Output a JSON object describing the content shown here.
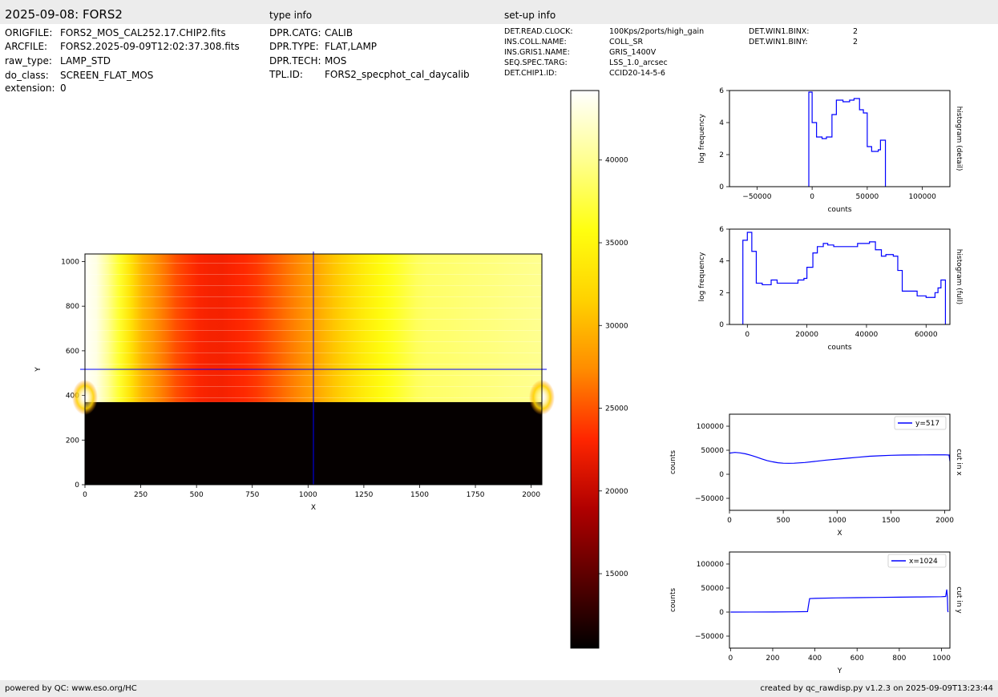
{
  "header": {
    "title": "2025-09-08: FORS2",
    "type_info_label": "type info",
    "setup_info_label": "set-up info"
  },
  "file_info": [
    {
      "key": "ORIGFILE:",
      "value": "FORS2_MOS_CAL252.17.CHIP2.fits"
    },
    {
      "key": "ARCFILE:",
      "value": "FORS2.2025-09-09T12:02:37.308.fits"
    },
    {
      "key": "raw_type:",
      "value": "LAMP_STD"
    },
    {
      "key": "do_class:",
      "value": "SCREEN_FLAT_MOS"
    },
    {
      "key": "extension:",
      "value": "0"
    }
  ],
  "type_info": [
    {
      "key": "DPR.CATG:",
      "value": "CALIB"
    },
    {
      "key": "DPR.TYPE:",
      "value": "FLAT,LAMP"
    },
    {
      "key": "DPR.TECH:",
      "value": "MOS"
    },
    {
      "key": "TPL.ID:",
      "value": "FORS2_specphot_cal_daycalib"
    }
  ],
  "setup_info": [
    {
      "key": "DET.READ.CLOCK:",
      "value": "100Kps/2ports/high_gain"
    },
    {
      "key": "INS.COLL.NAME:",
      "value": "COLL_SR"
    },
    {
      "key": "INS.GRIS1.NAME:",
      "value": "GRIS_1400V"
    },
    {
      "key": "SEQ.SPEC.TARG:",
      "value": "LSS_1.0_arcsec"
    },
    {
      "key": "DET.CHIP1.ID:",
      "value": "CCID20-14-5-6"
    }
  ],
  "setup_info2": [
    {
      "key": "DET.WIN1.BINX:",
      "value": "2"
    },
    {
      "key": "DET.WIN1.BINY:",
      "value": "2"
    }
  ],
  "footer": {
    "left": "powered by QC: www.eso.org/HC",
    "right": "created by qc_rawdisp.py v1.2.3 on 2025-09-09T13:23:44"
  },
  "colors": {
    "line": "#0000ff",
    "colormap": [
      "#000000",
      "#5a0000",
      "#b00000",
      "#ff2600",
      "#ff8c00",
      "#ffd200",
      "#ffff10",
      "#ffff90",
      "#ffffff"
    ]
  },
  "chart_data": [
    {
      "type": "heatmap",
      "xlabel": "X",
      "ylabel": "Y",
      "xlim": [
        0,
        2048
      ],
      "ylim": [
        0,
        1034
      ],
      "xticks": [
        0,
        250,
        500,
        750,
        1000,
        1250,
        1500,
        1750,
        2000
      ],
      "yticks": [
        0,
        200,
        400,
        600,
        800,
        1000
      ],
      "cursor_x": 1024,
      "cursor_y": 517,
      "illuminated_from_y": 370,
      "column_profile": {
        "x": [
          0,
          60,
          150,
          250,
          400,
          500,
          600,
          750,
          1000,
          1250,
          1500,
          2048
        ],
        "counts": [
          44000,
          43000,
          37000,
          30000,
          25000,
          23000,
          22500,
          23500,
          28000,
          34000,
          38500,
          40000
        ]
      }
    },
    {
      "type": "colorbar",
      "range": [
        10500,
        44200
      ],
      "ticks": [
        15000,
        20000,
        25000,
        30000,
        35000,
        40000
      ]
    },
    {
      "type": "line",
      "name": "histogram (detail)",
      "xlabel": "counts",
      "ylabel": "log frequency",
      "xlim": [
        -75000,
        125000
      ],
      "ylim": [
        0,
        6
      ],
      "xticks": [
        -50000,
        0,
        50000,
        100000
      ],
      "yticks": [
        0,
        2,
        4,
        6
      ],
      "steps": [
        [
          -3000,
          5.9
        ],
        [
          0,
          4.0
        ],
        [
          4000,
          3.1
        ],
        [
          9000,
          3.0
        ],
        [
          13000,
          3.1
        ],
        [
          18000,
          4.5
        ],
        [
          22000,
          5.4
        ],
        [
          28000,
          5.3
        ],
        [
          34000,
          5.4
        ],
        [
          38000,
          5.5
        ],
        [
          43000,
          4.8
        ],
        [
          46500,
          4.6
        ],
        [
          50000,
          2.5
        ],
        [
          54000,
          2.2
        ],
        [
          60000,
          2.3
        ],
        [
          62000,
          2.9
        ],
        [
          66500,
          0
        ]
      ]
    },
    {
      "type": "line",
      "name": "histogram (full)",
      "xlabel": "counts",
      "ylabel": "log frequency",
      "xlim": [
        -6000,
        68000
      ],
      "ylim": [
        0,
        6
      ],
      "xticks": [
        0,
        20000,
        40000,
        60000
      ],
      "yticks": [
        0,
        2,
        4,
        6
      ],
      "steps": [
        [
          -1500,
          5.3
        ],
        [
          0,
          5.8
        ],
        [
          1500,
          4.6
        ],
        [
          3000,
          2.6
        ],
        [
          5000,
          2.5
        ],
        [
          8000,
          2.8
        ],
        [
          10000,
          2.6
        ],
        [
          12000,
          2.6
        ],
        [
          17000,
          2.8
        ],
        [
          19000,
          2.9
        ],
        [
          20000,
          3.6
        ],
        [
          22000,
          4.5
        ],
        [
          23500,
          4.9
        ],
        [
          25500,
          5.1
        ],
        [
          27000,
          5.0
        ],
        [
          29000,
          4.9
        ],
        [
          37000,
          5.1
        ],
        [
          41000,
          5.2
        ],
        [
          43000,
          4.7
        ],
        [
          45000,
          4.3
        ],
        [
          46500,
          4.4
        ],
        [
          49000,
          4.3
        ],
        [
          50500,
          3.4
        ],
        [
          52000,
          2.1
        ],
        [
          57000,
          1.8
        ],
        [
          60000,
          1.7
        ],
        [
          63000,
          2.0
        ],
        [
          64000,
          2.3
        ],
        [
          65000,
          2.8
        ],
        [
          66500,
          0
        ]
      ]
    },
    {
      "type": "line",
      "name": "cut in x",
      "legend": "y=517",
      "xlabel": "X",
      "ylabel": "counts",
      "xlim": [
        0,
        2048
      ],
      "ylim": [
        -75000,
        125000
      ],
      "xticks": [
        0,
        500,
        1000,
        1500,
        2000
      ],
      "yticks": [
        -50000,
        0,
        50000,
        100000
      ],
      "x": [
        0,
        50,
        100,
        150,
        200,
        250,
        300,
        350,
        400,
        450,
        500,
        550,
        600,
        700,
        800,
        900,
        1000,
        1100,
        1200,
        1300,
        1400,
        1500,
        1600,
        1700,
        1800,
        1900,
        2000,
        2040,
        2048
      ],
      "y": [
        44000,
        45500,
        44500,
        42500,
        39500,
        36000,
        32000,
        28500,
        26000,
        24000,
        23000,
        22800,
        23000,
        24500,
        27000,
        29500,
        31500,
        33500,
        35500,
        37500,
        38500,
        39500,
        40000,
        40200,
        40300,
        40400,
        40500,
        40000,
        27000
      ]
    },
    {
      "type": "line",
      "name": "cut in y",
      "legend": "x=1024",
      "xlabel": "Y",
      "ylabel": "counts",
      "xlim": [
        -5,
        1040
      ],
      "ylim": [
        -75000,
        125000
      ],
      "xticks": [
        0,
        200,
        400,
        600,
        800,
        1000
      ],
      "yticks": [
        -50000,
        0,
        50000,
        100000
      ],
      "x": [
        0,
        100,
        200,
        300,
        365,
        370,
        375,
        400,
        500,
        600,
        700,
        800,
        900,
        1000,
        1020,
        1025,
        1028,
        1030,
        1032
      ],
      "y": [
        0,
        100,
        200,
        500,
        1000,
        15000,
        28000,
        28500,
        29500,
        30000,
        30500,
        31000,
        31500,
        32000,
        32500,
        47000,
        32000,
        2000,
        0
      ]
    }
  ]
}
